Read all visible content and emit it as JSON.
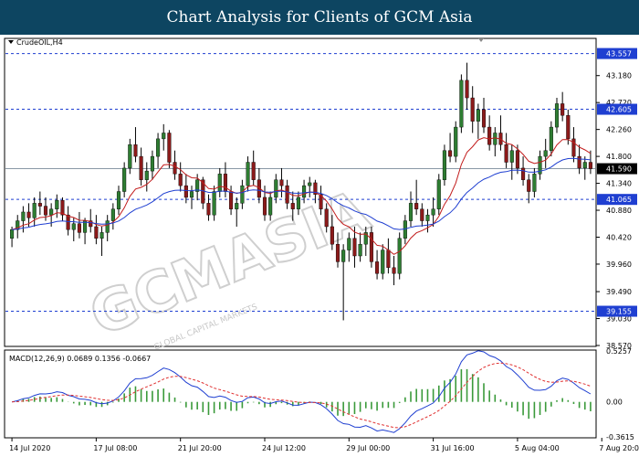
{
  "header": {
    "title": "Chart Analysis for Clients of GCM Asia"
  },
  "chart": {
    "symbol_label": "CrudeOIL,H4",
    "watermark_text": "GCMASIA",
    "watermark_sub": "GLOBAL CAPITAL MARKETS"
  },
  "colors": {
    "header_bg": "#0d4561",
    "bull": "#2e7d32",
    "bear": "#8b1a1a",
    "ma_fast": "#c21c1c",
    "ma_slow": "#1f3fd1",
    "level": "#1f3fd1",
    "macd_hist": "#3a9a3a",
    "macd_signal": "#e03030",
    "macd_line": "#1f3fd1"
  },
  "chart_data": {
    "type": "candlestick",
    "price_axis": {
      "ylim": [
        38.57,
        43.8
      ],
      "ticks": [
        "43.180",
        "42.720",
        "42.260",
        "41.800",
        "41.340",
        "40.880",
        "40.420",
        "39.960",
        "39.490",
        "39.030",
        "38.570"
      ],
      "levels": [
        {
          "label": "43.557",
          "value": 43.557
        },
        {
          "label": "42.605",
          "value": 42.605
        },
        {
          "label": "41.065",
          "value": 41.065
        },
        {
          "label": "39.155",
          "value": 39.155
        }
      ],
      "current": {
        "label": "41.590",
        "value": 41.59
      }
    },
    "time_axis": {
      "ticks": [
        "14 Jul 2020",
        "17 Jul 08:00",
        "21 Jul 20:00",
        "24 Jul 12:00",
        "29 Jul 00:00",
        "31 Jul 16:00",
        "5 Aug 04:00",
        "7 Aug 20:00"
      ],
      "tick_index": [
        0,
        15,
        30,
        45,
        60,
        75,
        90,
        105
      ]
    },
    "candles": [
      [
        40.4,
        40.6,
        40.25,
        40.55
      ],
      [
        40.55,
        40.8,
        40.4,
        40.7
      ],
      [
        40.7,
        40.95,
        40.5,
        40.85
      ],
      [
        40.85,
        41.0,
        40.6,
        40.75
      ],
      [
        40.75,
        41.1,
        40.6,
        41.0
      ],
      [
        41.0,
        41.2,
        40.8,
        40.95
      ],
      [
        40.95,
        41.1,
        40.7,
        40.8
      ],
      [
        40.8,
        41.0,
        40.6,
        40.9
      ],
      [
        40.9,
        41.15,
        40.75,
        41.05
      ],
      [
        41.05,
        41.1,
        40.7,
        40.8
      ],
      [
        40.8,
        40.95,
        40.45,
        40.55
      ],
      [
        40.55,
        40.75,
        40.35,
        40.65
      ],
      [
        40.65,
        40.85,
        40.4,
        40.5
      ],
      [
        40.5,
        40.75,
        40.3,
        40.7
      ],
      [
        40.7,
        40.9,
        40.5,
        40.6
      ],
      [
        40.6,
        40.8,
        40.3,
        40.4
      ],
      [
        40.4,
        40.6,
        40.1,
        40.5
      ],
      [
        40.5,
        40.8,
        40.35,
        40.7
      ],
      [
        40.7,
        41.0,
        40.55,
        40.9
      ],
      [
        40.9,
        41.3,
        40.8,
        41.2
      ],
      [
        41.2,
        41.7,
        41.1,
        41.6
      ],
      [
        41.6,
        42.1,
        41.5,
        42.0
      ],
      [
        42.0,
        42.3,
        41.7,
        41.8
      ],
      [
        41.8,
        41.95,
        41.3,
        41.4
      ],
      [
        41.4,
        41.7,
        41.2,
        41.55
      ],
      [
        41.55,
        41.9,
        41.4,
        41.8
      ],
      [
        41.8,
        42.2,
        41.6,
        42.1
      ],
      [
        42.1,
        42.35,
        41.9,
        42.2
      ],
      [
        42.2,
        42.25,
        41.6,
        41.7
      ],
      [
        41.7,
        41.9,
        41.4,
        41.5
      ],
      [
        41.5,
        41.7,
        41.2,
        41.3
      ],
      [
        41.3,
        41.5,
        41.0,
        41.1
      ],
      [
        41.1,
        41.3,
        40.9,
        41.2
      ],
      [
        41.2,
        41.5,
        41.05,
        41.4
      ],
      [
        41.4,
        41.45,
        40.9,
        41.0
      ],
      [
        41.0,
        41.15,
        40.7,
        40.8
      ],
      [
        40.8,
        41.3,
        40.7,
        41.2
      ],
      [
        41.2,
        41.6,
        41.1,
        41.5
      ],
      [
        41.5,
        41.7,
        41.1,
        41.2
      ],
      [
        41.2,
        41.3,
        40.8,
        40.9
      ],
      [
        40.9,
        41.1,
        40.6,
        41.0
      ],
      [
        41.0,
        41.4,
        40.9,
        41.3
      ],
      [
        41.3,
        41.8,
        41.2,
        41.7
      ],
      [
        41.7,
        41.9,
        41.3,
        41.4
      ],
      [
        41.4,
        41.6,
        41.0,
        41.1
      ],
      [
        41.1,
        41.3,
        40.7,
        40.8
      ],
      [
        40.8,
        41.2,
        40.7,
        41.1
      ],
      [
        41.1,
        41.5,
        41.0,
        41.4
      ],
      [
        41.4,
        41.6,
        41.1,
        41.3
      ],
      [
        41.3,
        41.4,
        40.9,
        41.0
      ],
      [
        41.0,
        41.2,
        40.7,
        40.9
      ],
      [
        40.9,
        41.2,
        40.8,
        41.1
      ],
      [
        41.1,
        41.4,
        41.0,
        41.3
      ],
      [
        41.3,
        41.45,
        41.1,
        41.35
      ],
      [
        41.35,
        41.4,
        41.0,
        41.15
      ],
      [
        41.15,
        41.3,
        40.8,
        40.9
      ],
      [
        40.9,
        41.0,
        40.5,
        40.6
      ],
      [
        40.6,
        40.8,
        40.2,
        40.3
      ],
      [
        40.3,
        40.5,
        39.9,
        40.0
      ],
      [
        40.0,
        40.3,
        39.0,
        40.2
      ],
      [
        40.2,
        40.5,
        40.0,
        40.4
      ],
      [
        40.4,
        40.6,
        39.9,
        40.1
      ],
      [
        40.1,
        40.5,
        40.0,
        40.3
      ],
      [
        40.3,
        40.6,
        40.1,
        40.5
      ],
      [
        40.5,
        40.6,
        39.9,
        40.0
      ],
      [
        40.0,
        40.2,
        39.7,
        39.8
      ],
      [
        39.8,
        40.3,
        39.7,
        40.2
      ],
      [
        40.2,
        40.4,
        39.8,
        39.9
      ],
      [
        39.9,
        40.1,
        39.6,
        39.8
      ],
      [
        39.8,
        40.5,
        39.7,
        40.4
      ],
      [
        40.4,
        40.8,
        40.3,
        40.7
      ],
      [
        40.7,
        41.2,
        40.6,
        41.0
      ],
      [
        41.0,
        41.4,
        40.8,
        40.9
      ],
      [
        40.9,
        41.0,
        40.6,
        40.7
      ],
      [
        40.7,
        40.9,
        40.5,
        40.8
      ],
      [
        40.8,
        41.1,
        40.6,
        40.9
      ],
      [
        40.9,
        41.5,
        40.8,
        41.4
      ],
      [
        41.4,
        42.0,
        41.3,
        41.9
      ],
      [
        41.9,
        42.2,
        41.7,
        41.8
      ],
      [
        41.8,
        42.4,
        41.7,
        42.3
      ],
      [
        42.3,
        43.2,
        42.2,
        43.1
      ],
      [
        43.1,
        43.4,
        42.6,
        42.8
      ],
      [
        42.8,
        43.0,
        42.2,
        42.4
      ],
      [
        42.4,
        42.7,
        42.1,
        42.6
      ],
      [
        42.6,
        42.8,
        42.2,
        42.3
      ],
      [
        42.3,
        42.5,
        41.9,
        42.0
      ],
      [
        42.0,
        42.3,
        41.8,
        42.2
      ],
      [
        42.2,
        42.5,
        41.9,
        42.0
      ],
      [
        42.0,
        42.2,
        41.6,
        41.7
      ],
      [
        41.7,
        42.0,
        41.4,
        41.9
      ],
      [
        41.9,
        42.0,
        41.5,
        41.6
      ],
      [
        41.6,
        41.8,
        41.3,
        41.4
      ],
      [
        41.4,
        41.5,
        41.0,
        41.2
      ],
      [
        41.2,
        41.6,
        41.1,
        41.5
      ],
      [
        41.5,
        41.9,
        41.4,
        41.8
      ],
      [
        41.8,
        42.1,
        41.6,
        41.9
      ],
      [
        41.9,
        42.4,
        41.8,
        42.3
      ],
      [
        42.3,
        42.8,
        42.2,
        42.7
      ],
      [
        42.7,
        42.9,
        42.4,
        42.5
      ],
      [
        42.5,
        42.6,
        42.0,
        42.1
      ],
      [
        42.1,
        42.3,
        41.7,
        41.8
      ],
      [
        41.8,
        42.0,
        41.5,
        41.6
      ],
      [
        41.6,
        41.8,
        41.4,
        41.7
      ],
      [
        41.7,
        41.9,
        41.5,
        41.59
      ]
    ],
    "macd": {
      "label": "MACD(12,26,9) 0.0689 0.1356 -0.0667",
      "ylim": [
        -0.3615,
        0.5257
      ],
      "ticks": [
        "0.5257",
        "0.00",
        "-0.3615"
      ]
    }
  }
}
